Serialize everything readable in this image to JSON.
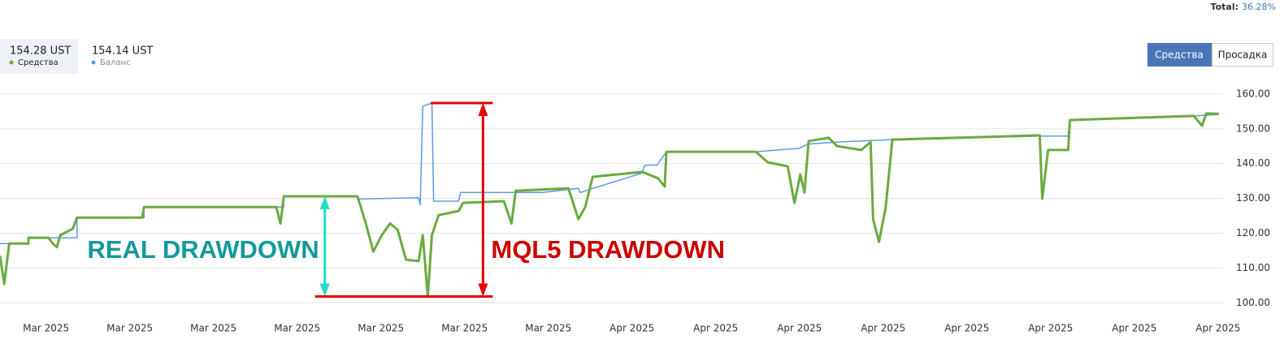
{
  "header": {
    "total_label": "Total:",
    "total": "36.28%"
  },
  "buttons": [
    {
      "label": "Средства",
      "active": true
    },
    {
      "label": "Просадка",
      "active": false
    }
  ],
  "chart_data": {
    "type": "line",
    "series": [
      {
        "name": "Средства",
        "last_label": "154.28 UST",
        "color": "#6aab3f",
        "width": 3,
        "x": [
          -0.55,
          -0.5,
          -0.44,
          -0.21,
          -0.21,
          0.03,
          0.08,
          0.13,
          0.17,
          0.32,
          0.37,
          1.15,
          1.17,
          2.75,
          2.8,
          2.84,
          3.72,
          3.82,
          3.91,
          4.01,
          4.11,
          4.2,
          4.3,
          4.45,
          4.5,
          4.56,
          4.61,
          4.69,
          4.93,
          4.98,
          5.47,
          5.56,
          5.61,
          6.24,
          6.36,
          6.44,
          6.53,
          7.12,
          7.31,
          7.39,
          7.41,
          8.48,
          8.62,
          8.86,
          8.94,
          9.01,
          9.06,
          9.11,
          9.35,
          9.45,
          9.74,
          9.85,
          9.88,
          9.95,
          10.03,
          10.11,
          11.87,
          11.9,
          11.97,
          12.21,
          12.23,
          13.71,
          13.81,
          13.86,
          14.01
        ],
        "values": [
          113.5,
          105.4,
          117,
          117,
          118.7,
          118.7,
          117,
          116,
          119.4,
          121.3,
          124.5,
          124.5,
          127.5,
          127.5,
          122.8,
          130.6,
          130.6,
          122.8,
          114.7,
          119.4,
          122.8,
          121,
          112.4,
          112,
          119.5,
          101.8,
          119.5,
          125.2,
          126.4,
          128.7,
          129.2,
          122.8,
          132.2,
          132.9,
          124,
          127.5,
          136.2,
          137.6,
          135.8,
          133.4,
          143.4,
          143.4,
          140.4,
          139.2,
          128.7,
          136.9,
          131.7,
          146.5,
          147.4,
          145,
          143.9,
          146.2,
          124,
          117.5,
          127.5,
          146.9,
          148.1,
          129.9,
          143.9,
          143.9,
          152.5,
          153.7,
          150.9,
          154.4,
          154.3
        ]
      },
      {
        "name": "Баланс",
        "last_label": "154.14 UST",
        "color": "#5b9be0",
        "width": 1.5,
        "x": [
          -0.55,
          -0.21,
          -0.21,
          0.37,
          0.37,
          1.17,
          1.17,
          2.84,
          2.84,
          3.72,
          3.72,
          4.45,
          4.47,
          4.5,
          4.61,
          4.63,
          4.93,
          4.95,
          5.93,
          6.36,
          6.38,
          7.12,
          7.15,
          7.3,
          7.41,
          8.48,
          9.0,
          9.1,
          9.45,
          10.11,
          11.87,
          12.21,
          12.23,
          13.71,
          14.01
        ],
        "values": [
          117,
          117,
          118.7,
          118.7,
          124.5,
          124.5,
          127.5,
          127.5,
          130.6,
          130.6,
          129.8,
          130.2,
          128.2,
          156.5,
          157.4,
          129.2,
          129.2,
          131.7,
          131.7,
          132.9,
          131.7,
          137.3,
          139.5,
          139.6,
          143.4,
          143.4,
          144.4,
          145.6,
          146.2,
          146.9,
          147.9,
          147.9,
          152.5,
          153.7,
          154.1
        ]
      }
    ],
    "xlim": [
      -0.55,
      14.06
    ],
    "xticks": [
      {
        "value": 0,
        "label": "Mar 2025"
      },
      {
        "value": 1,
        "label": "Mar 2025"
      },
      {
        "value": 2,
        "label": "Mar 2025"
      },
      {
        "value": 3,
        "label": "Mar 2025"
      },
      {
        "value": 4,
        "label": "Mar 2025"
      },
      {
        "value": 5,
        "label": "Mar 2025"
      },
      {
        "value": 6,
        "label": "Mar 2025"
      },
      {
        "value": 7,
        "label": "Apr 2025"
      },
      {
        "value": 8,
        "label": "Apr 2025"
      },
      {
        "value": 9,
        "label": "Apr 2025"
      },
      {
        "value": 10,
        "label": "Apr 2025"
      },
      {
        "value": 11,
        "label": "Apr 2025"
      },
      {
        "value": 12,
        "label": "Apr 2025"
      },
      {
        "value": 13,
        "label": "Apr 2025"
      },
      {
        "value": 14,
        "label": "Apr 2025"
      }
    ],
    "ylim": [
      97.5,
      163
    ],
    "yticks": [
      {
        "value": 100,
        "label": "100.00"
      },
      {
        "value": 110,
        "label": "110.00"
      },
      {
        "value": 120,
        "label": "120.00"
      },
      {
        "value": 130,
        "label": "130.00"
      },
      {
        "value": 140,
        "label": "140.00"
      },
      {
        "value": 150,
        "label": "150.00"
      },
      {
        "value": 160,
        "label": "160.00"
      }
    ],
    "grid": true,
    "annotations": [
      {
        "text": "REAL DRAWDOWN",
        "color": "#139a9c",
        "arrow_color": "#1de0c8",
        "x": 3.33,
        "from": 130.6,
        "to": 101.8
      },
      {
        "text": "MQL5 DRAWDOWN",
        "color": "#cc0000",
        "arrow_color": "#e80000",
        "x": 5.22,
        "from": 157.4,
        "to": 101.8
      }
    ]
  }
}
